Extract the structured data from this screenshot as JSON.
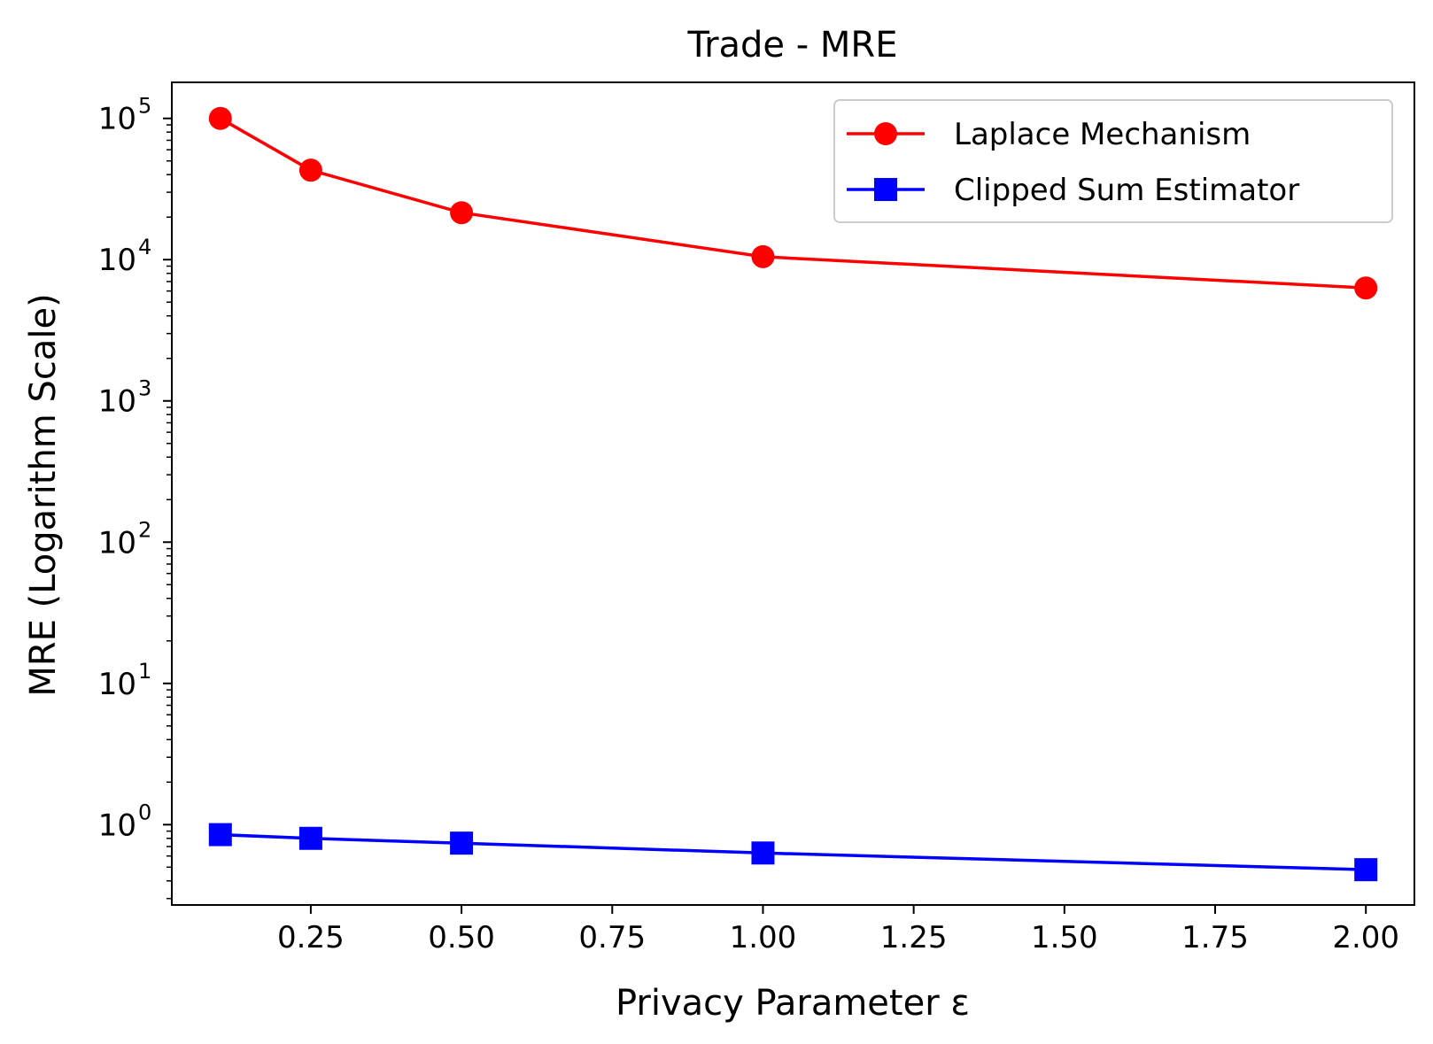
{
  "chart_data": {
    "type": "line",
    "title": "Trade - MRE",
    "xlabel": "Privacy Parameter ε",
    "ylabel": "MRE (Logarithm Scale)",
    "y_scale": "log",
    "xlim": [
      0.0195,
      2.0805
    ],
    "ylim": [
      0.27,
      180000
    ],
    "x_ticks": [
      {
        "value": 0.25,
        "label": "0.25"
      },
      {
        "value": 0.5,
        "label": "0.50"
      },
      {
        "value": 0.75,
        "label": "0.75"
      },
      {
        "value": 1.0,
        "label": "1.00"
      },
      {
        "value": 1.25,
        "label": "1.25"
      },
      {
        "value": 1.5,
        "label": "1.50"
      },
      {
        "value": 1.75,
        "label": "1.75"
      },
      {
        "value": 2.0,
        "label": "2.00"
      }
    ],
    "y_ticks": [
      {
        "value": 1,
        "base": "10",
        "exp": "0"
      },
      {
        "value": 10,
        "base": "10",
        "exp": "1"
      },
      {
        "value": 100,
        "base": "10",
        "exp": "2"
      },
      {
        "value": 1000,
        "base": "10",
        "exp": "3"
      },
      {
        "value": 10000,
        "base": "10",
        "exp": "4"
      },
      {
        "value": 100000,
        "base": "10",
        "exp": "5"
      }
    ],
    "x": [
      0.1,
      0.25,
      0.5,
      1.0,
      2.0
    ],
    "series": [
      {
        "name": "Laplace Mechanism",
        "color": "#ff0000",
        "marker": "circle",
        "values": [
          100000,
          43000,
          21500,
          10500,
          6300
        ]
      },
      {
        "name": "Clipped Sum Estimator",
        "color": "#0000ff",
        "marker": "square",
        "values": [
          0.85,
          0.8,
          0.74,
          0.63,
          0.48
        ]
      }
    ],
    "legend_position": "top-right",
    "grid": false
  }
}
